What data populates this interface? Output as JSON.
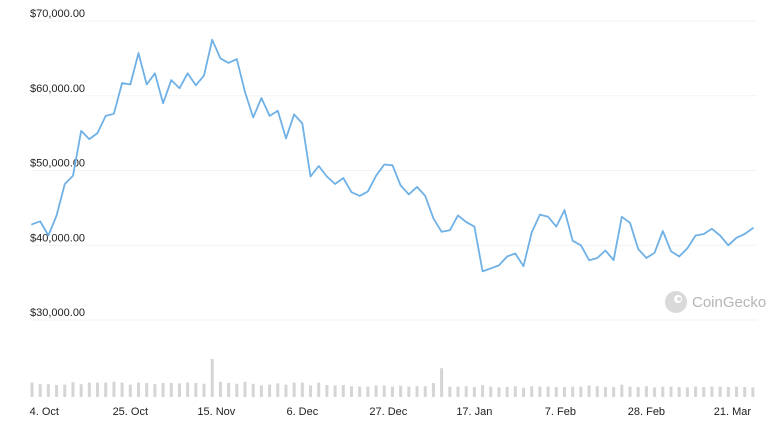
{
  "chart_data": {
    "type": "line",
    "y_ticks": [
      "$70,000.00",
      "$60,000.00",
      "$50,000.00",
      "$40,000.00",
      "$30,000.00"
    ],
    "y_tick_values": [
      70000,
      60000,
      50000,
      40000,
      30000
    ],
    "ylim": [
      30000,
      70000
    ],
    "x_tick_labels": [
      "4. Oct",
      "25. Oct",
      "15. Nov",
      "6. Dec",
      "27. Dec",
      "17. Jan",
      "7. Feb",
      "28. Feb",
      "21. Mar"
    ],
    "x_tick_days": [
      3,
      24,
      45,
      66,
      87,
      108,
      129,
      150,
      171
    ],
    "grid": true,
    "series": [
      {
        "x_days": [
          0,
          2,
          4,
          6,
          8,
          10,
          12,
          14,
          16,
          18,
          20,
          22,
          24,
          26,
          28,
          30,
          32,
          34,
          36,
          38,
          40,
          42,
          44,
          46,
          48,
          50,
          52,
          54,
          56,
          58,
          60,
          62,
          64,
          66,
          68,
          70,
          72,
          74,
          76,
          78,
          80,
          82,
          84,
          86,
          88,
          90,
          92,
          94,
          96,
          98,
          100,
          102,
          104,
          106,
          108,
          110,
          112,
          114,
          116,
          118,
          120,
          122,
          124,
          126,
          128,
          130,
          132,
          134,
          136,
          138,
          140,
          142,
          144,
          146,
          148,
          150,
          152,
          154,
          156,
          158,
          160,
          162,
          164,
          166,
          168,
          170,
          172,
          174,
          176
        ],
        "values": [
          42800,
          43200,
          41300,
          44000,
          48200,
          49300,
          55300,
          54200,
          55000,
          57300,
          57600,
          61700,
          61500,
          65700,
          61500,
          63000,
          59000,
          62100,
          61000,
          63000,
          61400,
          62700,
          67500,
          65000,
          64400,
          64900,
          60500,
          57100,
          59700,
          57300,
          58000,
          54300,
          57500,
          56300,
          49200,
          50600,
          49200,
          48200,
          49000,
          47100,
          46600,
          47200,
          49300,
          50800,
          50700,
          48000,
          46800,
          47800,
          46600,
          43600,
          41800,
          42000,
          44000,
          43100,
          42500,
          36500,
          36900,
          37300,
          38500,
          38900,
          37200,
          41700,
          44100,
          43800,
          42500,
          44700,
          40600,
          40000,
          38000,
          38300,
          39300,
          38000,
          43800,
          43000,
          39500,
          38300,
          39000,
          41900,
          39200,
          38500,
          39600,
          41300,
          41500,
          42200,
          41300,
          40000,
          41000,
          41500,
          42300
        ]
      }
    ],
    "volume": {
      "x_days": [
        0,
        2,
        4,
        6,
        8,
        10,
        12,
        14,
        16,
        18,
        20,
        22,
        24,
        26,
        28,
        30,
        32,
        34,
        36,
        38,
        40,
        42,
        44,
        46,
        48,
        50,
        52,
        54,
        56,
        58,
        60,
        62,
        64,
        66,
        68,
        70,
        72,
        74,
        76,
        78,
        80,
        82,
        84,
        86,
        88,
        90,
        92,
        94,
        96,
        98,
        100,
        102,
        104,
        106,
        108,
        110,
        112,
        114,
        116,
        118,
        120,
        122,
        124,
        126,
        128,
        130,
        132,
        134,
        136,
        138,
        140,
        142,
        144,
        146,
        148,
        150,
        152,
        154,
        156,
        158,
        160,
        162,
        164,
        166,
        168,
        170,
        172,
        174,
        176
      ],
      "values": [
        3.6,
        3.2,
        3.2,
        3.0,
        3.1,
        3.7,
        3.2,
        3.6,
        3.6,
        3.6,
        3.8,
        3.6,
        3.1,
        3.6,
        3.5,
        3.2,
        3.5,
        3.5,
        3.4,
        3.6,
        3.5,
        3.3,
        9.5,
        3.8,
        3.5,
        3.3,
        3.8,
        3.3,
        2.9,
        3.1,
        3.4,
        3.1,
        3.6,
        3.6,
        2.9,
        3.6,
        3.0,
        2.9,
        3.0,
        2.7,
        2.6,
        2.6,
        2.9,
        2.9,
        2.6,
        2.8,
        2.6,
        2.7,
        2.7,
        3.5,
        7.2,
        2.6,
        2.6,
        2.7,
        2.5,
        3.0,
        2.6,
        2.4,
        2.5,
        2.7,
        2.3,
        2.7,
        2.6,
        2.6,
        2.5,
        2.5,
        2.6,
        2.6,
        2.9,
        2.7,
        2.5,
        2.5,
        3.1,
        2.6,
        2.5,
        2.7,
        2.4,
        2.6,
        2.6,
        2.5,
        2.4,
        2.6,
        2.5,
        2.6,
        2.6,
        2.5,
        2.6,
        2.5,
        2.4
      ],
      "vmax": 10
    }
  },
  "watermark": {
    "text": "CoinGecko",
    "icon": "gecko-logo-icon",
    "color": "#b5b5b5"
  },
  "colors": {
    "line": "#6fb1e6",
    "volume": "#d5d5d5",
    "grid": "#f1f3f6"
  }
}
